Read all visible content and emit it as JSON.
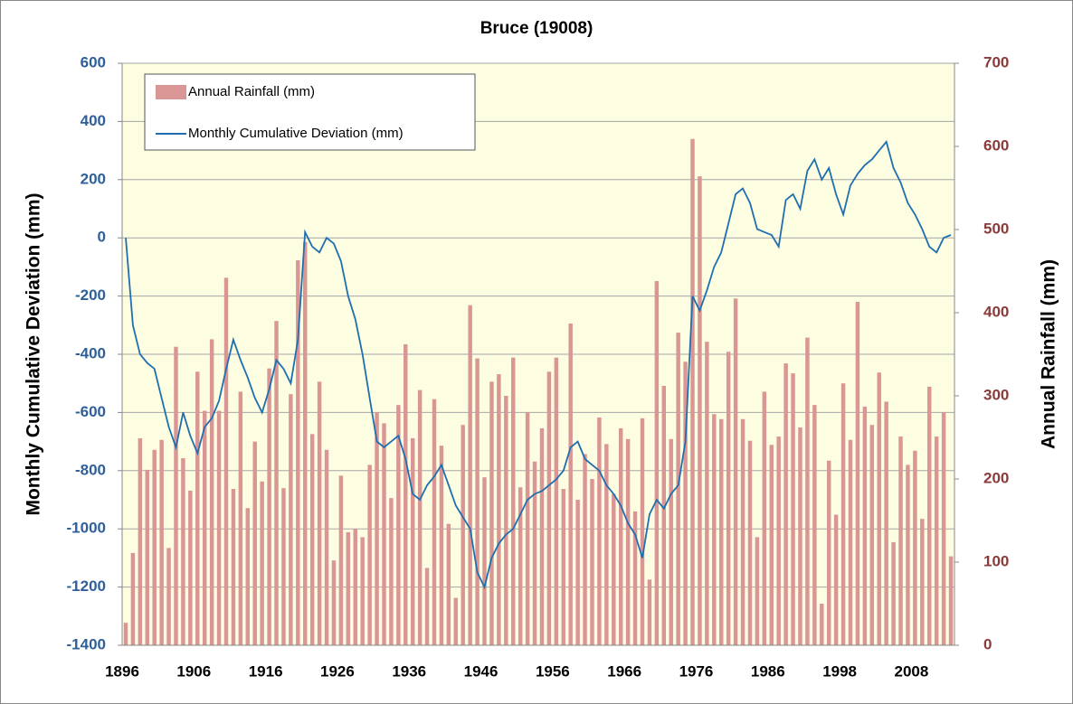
{
  "chart_data": {
    "type": "combo",
    "title": "Bruce  (19008)",
    "y_label": "Monthly Cumulative Deviation (mm)",
    "y2_label": "Annual Rainfall (mm)",
    "categories": [
      "1896",
      null,
      null,
      null,
      null,
      null,
      null,
      null,
      null,
      null,
      "1906",
      null,
      null,
      null,
      null,
      null,
      null,
      null,
      null,
      null,
      "1916",
      null,
      null,
      null,
      null,
      null,
      null,
      null,
      null,
      null,
      "1926",
      null,
      null,
      null,
      null,
      null,
      null,
      null,
      null,
      null,
      "1936",
      null,
      null,
      null,
      null,
      null,
      null,
      null,
      null,
      null,
      "1946",
      null,
      null,
      null,
      null,
      null,
      null,
      null,
      null,
      null,
      "1956",
      null,
      null,
      null,
      null,
      null,
      null,
      null,
      null,
      null,
      "1966",
      null,
      null,
      null,
      null,
      null,
      null,
      null,
      null,
      null,
      "1976",
      null,
      null,
      null,
      null,
      null,
      null,
      null,
      null,
      null,
      "1986",
      null,
      null,
      null,
      null,
      null,
      null,
      null,
      null,
      null,
      "1998",
      null,
      null,
      null,
      null,
      null,
      null,
      null,
      null,
      null,
      "2008",
      null,
      null,
      null,
      null,
      null
    ],
    "series": [
      {
        "name": "Annual Rainfall (mm)",
        "type": "bar",
        "axis": "y2",
        "color": "#d99694",
        "values": [
          27,
          111,
          249,
          211,
          235,
          247,
          117,
          359,
          225,
          186,
          329,
          282,
          368,
          282,
          442,
          188,
          305,
          165,
          245,
          197,
          333,
          390,
          189,
          302,
          463,
          485,
          254,
          317,
          235,
          102,
          204,
          136,
          140,
          130,
          217,
          280,
          267,
          177,
          289,
          362,
          249,
          307,
          93,
          296,
          240,
          146,
          57,
          265,
          409,
          345,
          202,
          317,
          326,
          300,
          346,
          190,
          280,
          221,
          261,
          329,
          346,
          188,
          387,
          175,
          230,
          200,
          274,
          242,
          182,
          261,
          248,
          161,
          273,
          79,
          438,
          312,
          248,
          376,
          341,
          609,
          564,
          365,
          278,
          272,
          353,
          417,
          272,
          246,
          130,
          305,
          241,
          251,
          339,
          327,
          262,
          370,
          289,
          50,
          222,
          157,
          315,
          247,
          413,
          287,
          265,
          328,
          293,
          124,
          251,
          217,
          234,
          152,
          311,
          251,
          280,
          107
        ]
      },
      {
        "name": "Monthly Cumulative Deviation (mm)",
        "type": "line",
        "axis": "y",
        "color": "#1f6fb0",
        "values": [
          0,
          -300,
          -400,
          -430,
          -450,
          -550,
          -650,
          -720,
          -600,
          -680,
          -740,
          -650,
          -620,
          -560,
          -450,
          -350,
          -420,
          -480,
          -550,
          -600,
          -520,
          -420,
          -450,
          -500,
          -350,
          20,
          -30,
          -50,
          0,
          -20,
          -80,
          -200,
          -280,
          -400,
          -550,
          -700,
          -720,
          -700,
          -680,
          -760,
          -880,
          -900,
          -850,
          -820,
          -780,
          -850,
          -920,
          -960,
          -1000,
          -1150,
          -1200,
          -1100,
          -1050,
          -1020,
          -1000,
          -950,
          -900,
          -880,
          -870,
          -850,
          -830,
          -800,
          -720,
          -700,
          -760,
          -780,
          -800,
          -850,
          -880,
          -920,
          -980,
          -1020,
          -1100,
          -950,
          -900,
          -930,
          -880,
          -850,
          -700,
          -200,
          -250,
          -180,
          -100,
          -50,
          50,
          150,
          170,
          120,
          30,
          20,
          10,
          -30,
          130,
          150,
          100,
          230,
          270,
          200,
          240,
          150,
          80,
          180,
          220,
          250,
          270,
          300,
          330,
          240,
          190,
          120,
          80,
          30,
          -30,
          -50,
          0,
          10
        ]
      }
    ],
    "ylim": [
      -1400,
      600
    ],
    "yticks": [
      -1400,
      -1200,
      -1000,
      -800,
      -600,
      -400,
      -200,
      0,
      200,
      400,
      600
    ],
    "y2lim": [
      0,
      700
    ],
    "y2ticks": [
      0,
      100,
      200,
      300,
      400,
      500,
      600,
      700
    ],
    "grid": true,
    "legend": "top-left",
    "plot_background": "#fdfde2"
  }
}
